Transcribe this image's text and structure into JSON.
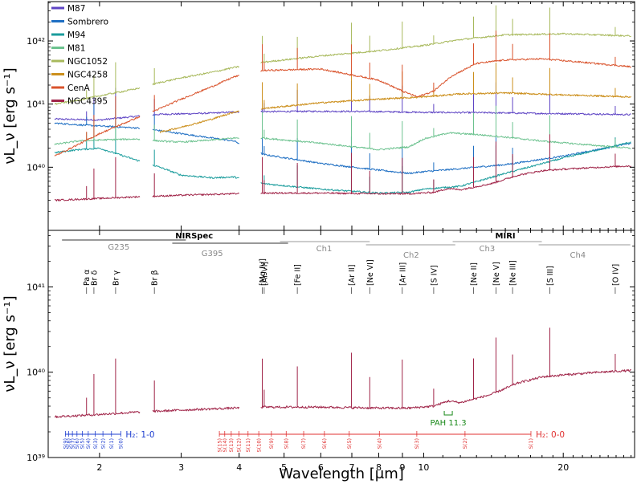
{
  "chart_data": [
    {
      "type": "line",
      "xlabel": "",
      "ylabel": "νL_ν [erg s⁻¹]",
      "xscale": "log",
      "yscale": "log",
      "xlim": [
        1.55,
        28.5
      ],
      "ylim": [
        1e+39,
        4.2e+42
      ],
      "yticks": [
        {
          "value": 1e+40,
          "label": "10⁴⁰"
        },
        {
          "value": 1e+41,
          "label": "10⁴¹"
        },
        {
          "value": 1e+42,
          "label": "10⁴²"
        }
      ],
      "gaps": [
        [
          2.45,
          2.6
        ],
        [
          4.0,
          4.45
        ]
      ],
      "legend_position": "top-left",
      "series": [
        {
          "name": "M87",
          "color": "#5e44c4",
          "x": [
            1.6,
            2.0,
            2.4,
            2.7,
            3.0,
            3.5,
            3.9,
            4.5,
            6.0,
            8.0,
            10.0,
            14.0,
            18.0,
            22.0,
            28.0
          ],
          "y": [
            5.8e+40,
            5.6e+40,
            6.4e+40,
            6.9e+40,
            7e+40,
            7.2e+40,
            7.5e+40,
            7.6e+40,
            7.7e+40,
            7.6e+40,
            7.4e+40,
            7.3e+40,
            7.1e+40,
            7e+40,
            6.8e+40
          ]
        },
        {
          "name": "Sombrero",
          "color": "#1f6fc3",
          "x": [
            1.6,
            1.8,
            2.0,
            2.4,
            2.7,
            3.0,
            3.5,
            3.9,
            4.5,
            6.0,
            8.0,
            9.3,
            10.0,
            12.0,
            15.0,
            20.0,
            28.0
          ],
          "y": [
            5e+40,
            4.7e+40,
            4.5e+40,
            4.2e+40,
            3.8e+40,
            3.4e+40,
            2.9e+40,
            2.6e+40,
            1.6e+40,
            1.15e+40,
            9e+39,
            8e+39,
            8.5e+39,
            9.5e+39,
            1.1e+40,
            1.5e+40,
            2.4e+40
          ]
        },
        {
          "name": "M94",
          "color": "#1a9c9c",
          "x": [
            1.6,
            1.8,
            2.0,
            2.4,
            2.7,
            3.0,
            3.5,
            3.9,
            4.5,
            6.0,
            8.0,
            9.3,
            10.0,
            12.0,
            15.0,
            20.0,
            28.0
          ],
          "y": [
            1.7e+40,
            1.9e+40,
            2e+40,
            1.3e+40,
            1e+40,
            7.5e+39,
            6.8e+39,
            7e+39,
            5.5e+39,
            4.5e+39,
            3.9e+39,
            4e+39,
            4.5e+39,
            5e+39,
            8e+39,
            1.4e+40,
            2.5e+40
          ]
        },
        {
          "name": "M81",
          "color": "#6cc28f",
          "x": [
            1.6,
            1.8,
            2.0,
            2.4,
            2.7,
            3.0,
            3.5,
            3.9,
            4.5,
            6.0,
            8.0,
            9.3,
            10.0,
            11.3,
            13.0,
            15.0,
            18.0,
            22.0,
            28.0
          ],
          "y": [
            2.3e+40,
            2.6e+40,
            2.7e+40,
            2.8e+40,
            2.6e+40,
            2.5e+40,
            2.7e+40,
            2.9e+40,
            2.9e+40,
            2.4e+40,
            1.9e+40,
            2.1e+40,
            2.8e+40,
            3.5e+40,
            3.3e+40,
            3e+40,
            2.6e+40,
            2.3e+40,
            2e+40
          ]
        },
        {
          "name": "NGC1052",
          "color": "#a8b95c",
          "x": [
            1.6,
            1.8,
            2.0,
            2.4,
            2.7,
            3.0,
            3.5,
            3.9,
            4.5,
            6.0,
            8.0,
            10.0,
            12.0,
            15.0,
            20.0,
            28.0
          ],
          "y": [
            1e+41,
            1.15e+41,
            1.35e+41,
            1.75e+41,
            2.2e+41,
            2.6e+41,
            3.2e+41,
            3.8e+41,
            4.6e+41,
            5.8e+41,
            7e+41,
            8.5e+41,
            1.05e+42,
            1.25e+42,
            1.3e+42,
            1.2e+42
          ]
        },
        {
          "name": "NGC4258",
          "color": "#cc8f1c",
          "x": [
            2.7,
            3.0,
            3.5,
            3.9,
            4.5,
            6.0,
            8.0,
            10.0,
            12.0,
            15.0,
            20.0,
            28.0
          ],
          "y": [
            3.6e+40,
            4.3e+40,
            5.8e+40,
            7.5e+40,
            8.5e+40,
            1.05e+41,
            1.2e+41,
            1.3e+41,
            1.45e+41,
            1.5e+41,
            1.4e+41,
            1.3e+41
          ]
        },
        {
          "name": "CenA",
          "color": "#d9532c",
          "x": [
            1.6,
            1.8,
            2.0,
            2.4,
            2.7,
            3.0,
            3.5,
            3.9,
            4.5,
            6.0,
            8.0,
            9.0,
            9.7,
            10.5,
            11.5,
            13.0,
            15.0,
            18.0,
            22.0,
            28.0
          ],
          "y": [
            1.5e+40,
            2.3e+40,
            3.4e+40,
            6e+40,
            8.5e+40,
            1.2e+41,
            1.9e+41,
            2.7e+41,
            3.4e+41,
            3.6e+41,
            2.4e+41,
            1.6e+41,
            1.3e+41,
            1.6e+41,
            2.8e+41,
            4.4e+41,
            5e+41,
            5.2e+41,
            4.6e+41,
            3.9e+41
          ]
        },
        {
          "name": "NGC4395",
          "color": "#a02448",
          "x": [
            1.6,
            2.0,
            2.4,
            2.7,
            3.0,
            3.9,
            4.5,
            6.0,
            8.0,
            9.3,
            10.5,
            11.3,
            12.0,
            14.0,
            16.0,
            18.0,
            20.0,
            24.0,
            28.0
          ],
          "y": [
            3e+39,
            3.2e+39,
            3.4e+39,
            3.5e+39,
            3.6e+39,
            3.8e+39,
            3.9e+39,
            3.9e+39,
            3.8e+39,
            3.8e+39,
            4e+39,
            4.6e+39,
            4.4e+39,
            5.5e+39,
            7.5e+39,
            8.8e+39,
            9.3e+39,
            1e+40,
            1.05e+40
          ]
        }
      ]
    },
    {
      "type": "line",
      "xlabel": "Wavelength [μm]",
      "ylabel": "νL_ν [erg s⁻¹]",
      "xscale": "log",
      "yscale": "log",
      "xlim": [
        1.55,
        28.5
      ],
      "ylim": [
        1e+39,
        4.6e+41
      ],
      "xticks": [
        {
          "value": 2,
          "label": "2"
        },
        {
          "value": 3,
          "label": "3"
        },
        {
          "value": 4,
          "label": "4"
        },
        {
          "value": 5,
          "label": "5"
        },
        {
          "value": 6,
          "label": "6"
        },
        {
          "value": 7,
          "label": "7"
        },
        {
          "value": 8,
          "label": "8"
        },
        {
          "value": 9,
          "label": "9"
        },
        {
          "value": 10,
          "label": "10"
        },
        {
          "value": 20,
          "label": "20"
        }
      ],
      "yticks": [
        {
          "value": 1e+39,
          "label": "10³⁹"
        },
        {
          "value": 1e+40,
          "label": "10⁴⁰"
        },
        {
          "value": 1e+41,
          "label": "10⁴¹"
        }
      ],
      "series": [
        {
          "name": "NGC4395",
          "color": "#a02448",
          "x": [
            1.6,
            2.0,
            2.4,
            2.7,
            3.0,
            3.9,
            4.5,
            6.0,
            8.0,
            9.3,
            10.5,
            11.3,
            12.0,
            14.0,
            16.0,
            18.0,
            20.0,
            24.0,
            28.0
          ],
          "y": [
            3e+39,
            3.2e+39,
            3.4e+39,
            3.5e+39,
            3.6e+39,
            3.8e+39,
            3.9e+39,
            3.9e+39,
            3.8e+39,
            3.8e+39,
            4e+39,
            4.6e+39,
            4.4e+39,
            5.5e+39,
            7.5e+39,
            8.8e+39,
            9.3e+39,
            1e+40,
            1.05e+40
          ]
        }
      ],
      "instruments": [
        {
          "label": "NIRSpec",
          "x": 3.2
        },
        {
          "label": "MIRI",
          "x": 15.0
        }
      ],
      "channels": [
        {
          "label": "G235",
          "range": [
            1.66,
            3.07
          ],
          "label_x": 2.2
        },
        {
          "label": "G395",
          "range": [
            2.87,
            5.1
          ],
          "label_x": 3.5
        },
        {
          "label": "Ch1",
          "range": [
            4.9,
            7.65
          ],
          "label_x": 6.1
        },
        {
          "label": "Ch2",
          "range": [
            7.51,
            11.7
          ],
          "label_x": 9.4
        },
        {
          "label": "Ch3",
          "range": [
            11.55,
            17.98
          ],
          "label_x": 13.7
        },
        {
          "label": "Ch4",
          "range": [
            17.7,
            27.9
          ],
          "label_x": 21.5
        }
      ],
      "emission_lines": [
        {
          "label": "Pa α",
          "x": 1.875
        },
        {
          "label": "Br δ",
          "x": 1.945
        },
        {
          "label": "Br γ",
          "x": 2.166
        },
        {
          "label": "Br β",
          "x": 2.626
        },
        {
          "label": "[Mg IV]",
          "x": 4.487
        },
        {
          "label": "[Ar VI]",
          "x": 4.53
        },
        {
          "label": "[Fe II]",
          "x": 5.34
        },
        {
          "label": "[Ar II]",
          "x": 6.985
        },
        {
          "label": "[Ne VI]",
          "x": 7.652
        },
        {
          "label": "[Ar III]",
          "x": 8.991
        },
        {
          "label": "[S IV]",
          "x": 10.51
        },
        {
          "label": "[Ne II]",
          "x": 12.81
        },
        {
          "label": "[Ne V]",
          "x": 14.32
        },
        {
          "label": "[Ne III]",
          "x": 15.55
        },
        {
          "label": "[S III]",
          "x": 18.71
        },
        {
          "label": "[O IV]",
          "x": 25.89
        }
      ],
      "pah": {
        "label": "PAH 11.3",
        "x": 11.3
      },
      "h2_10": {
        "label": "H₂: 1-0",
        "color": "#1f3fd0",
        "lines": [
          {
            "label": "S(9)",
            "x": 1.688
          },
          {
            "label": "S(8)",
            "x": 1.715
          },
          {
            "label": "S(7)",
            "x": 1.748
          },
          {
            "label": "S(6)",
            "x": 1.788
          },
          {
            "label": "S(5)",
            "x": 1.836
          },
          {
            "label": "S(4)",
            "x": 1.891
          },
          {
            "label": "S(3)",
            "x": 1.958
          },
          {
            "label": "S(2)",
            "x": 2.034
          },
          {
            "label": "S(1)",
            "x": 2.122
          },
          {
            "label": "S(0)",
            "x": 2.223
          }
        ]
      },
      "h2_00": {
        "label": "H₂: 0-0",
        "color": "#e03131",
        "lines": [
          {
            "label": "S(15)",
            "x": 3.626
          },
          {
            "label": "S(14)",
            "x": 3.724
          },
          {
            "label": "S(13)",
            "x": 3.846
          },
          {
            "label": "S(12)",
            "x": 3.996
          },
          {
            "label": "S(11)",
            "x": 4.181
          },
          {
            "label": "S(10)",
            "x": 4.41
          },
          {
            "label": "S(9)",
            "x": 4.695
          },
          {
            "label": "S(8)",
            "x": 5.053
          },
          {
            "label": "S(7)",
            "x": 5.511
          },
          {
            "label": "S(6)",
            "x": 6.109
          },
          {
            "label": "S(5)",
            "x": 6.91
          },
          {
            "label": "S(4)",
            "x": 8.026
          },
          {
            "label": "S(3)",
            "x": 9.665
          },
          {
            "label": "S(2)",
            "x": 12.279
          },
          {
            "label": "S(1)",
            "x": 17.035
          }
        ]
      }
    }
  ]
}
